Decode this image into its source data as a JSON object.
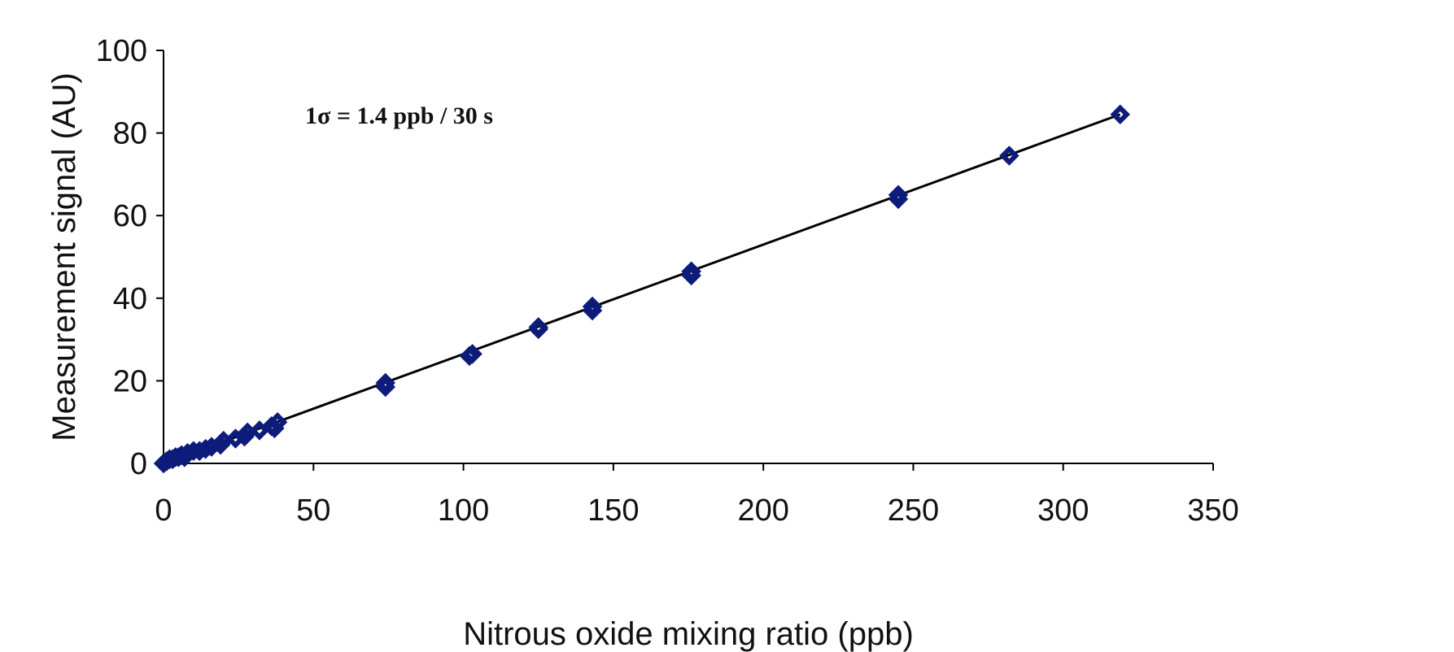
{
  "chart_data": {
    "type": "scatter",
    "title": "",
    "xlabel": "Nitrous oxide mixing ratio (ppb)",
    "ylabel": "Measurement signal (AU)",
    "xlim": [
      0,
      350
    ],
    "ylim": [
      0,
      100
    ],
    "x_ticks": [
      "0",
      "50",
      "100",
      "150",
      "200",
      "250",
      "300",
      "350"
    ],
    "y_ticks": [
      "0",
      "20",
      "40",
      "60",
      "80",
      "100"
    ],
    "annotation": "1σ = 1.4 ppb / 30 s",
    "marker_color": "#0d1b7a",
    "grid": false,
    "legend": "none",
    "series": [
      {
        "x": [
          0,
          1,
          2,
          3,
          4,
          5,
          6,
          7,
          8,
          10,
          12,
          14,
          16,
          19,
          20,
          24,
          27,
          28,
          32,
          36,
          37,
          38,
          74,
          74,
          102,
          103,
          125,
          125,
          143,
          143,
          176,
          176,
          245,
          245,
          282,
          319
        ],
        "y": [
          0,
          0.5,
          1,
          1,
          1.5,
          1.5,
          2,
          1.5,
          2.5,
          3,
          3,
          3.5,
          4,
          4.5,
          5.5,
          6,
          6.5,
          7.5,
          8,
          9,
          8.5,
          10,
          18.5,
          19.5,
          26,
          26.5,
          32.5,
          33,
          37,
          38,
          45.5,
          46.5,
          64,
          65,
          74.5,
          84.5
        ]
      }
    ],
    "fit_line": {
      "x": [
        0,
        319
      ],
      "y": [
        0,
        84.5
      ]
    }
  }
}
